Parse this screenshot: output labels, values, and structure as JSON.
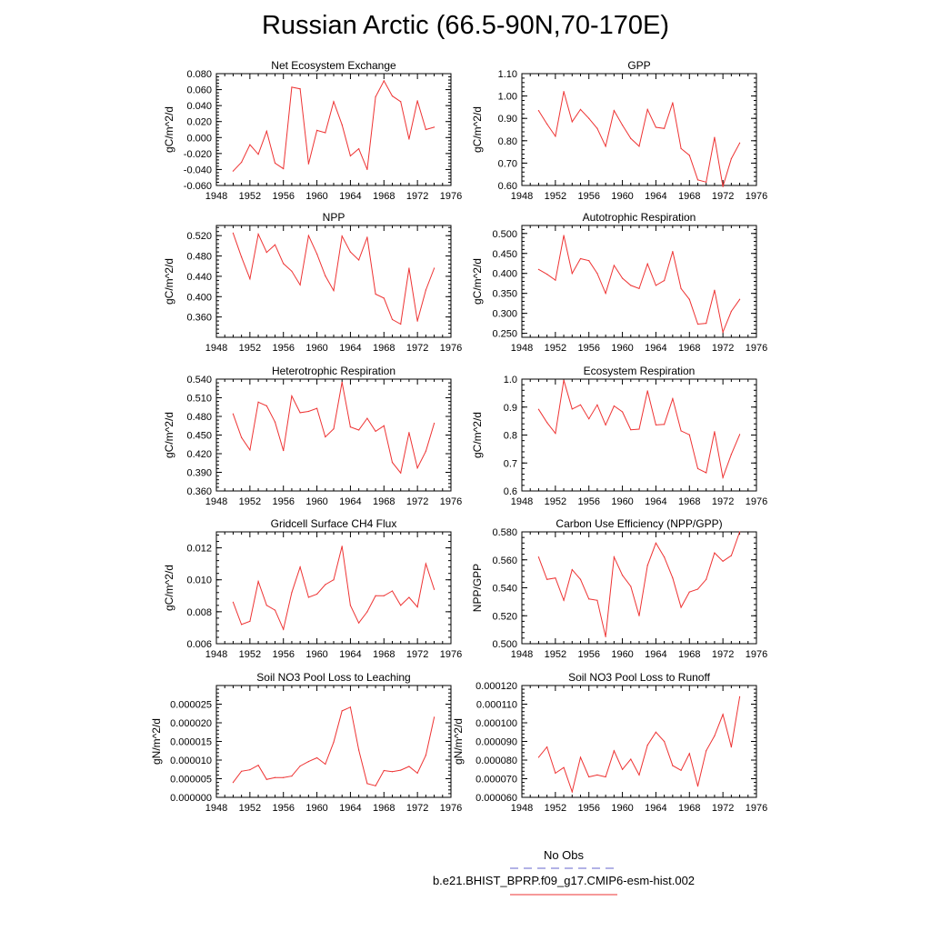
{
  "title": "Russian Arctic (66.5-90N,70-170E)",
  "legend": {
    "items": [
      {
        "label": "No Obs",
        "color": "#6666cc",
        "style": "dashed"
      },
      {
        "label": "b.e21.BHIST_BPRP.f09_g17.CMIP6-esm-hist.002",
        "color": "#ee3333",
        "style": "solid"
      }
    ]
  },
  "chart_data": [
    {
      "type": "line",
      "title": "Net Ecosystem Exchange",
      "xlabel": "",
      "ylabel": "gC/m^2/d",
      "xlim": [
        1948,
        1976
      ],
      "ylim": [
        -0.06,
        0.08
      ],
      "xticks": [
        "1948",
        "1952",
        "1956",
        "1960",
        "1964",
        "1968",
        "1972",
        "1976"
      ],
      "yticks": [
        "-0.060",
        "-0.040",
        "-0.020",
        "0.000",
        "0.020",
        "0.040",
        "0.060",
        "0.080"
      ],
      "series": [
        {
          "color": "#ee3333",
          "x": [
            1950,
            1951,
            1952,
            1953,
            1954,
            1955,
            1956,
            1957,
            1958,
            1959,
            1960,
            1961,
            1962,
            1963,
            1964,
            1965,
            1966,
            1967,
            1968,
            1969,
            1970,
            1971,
            1972,
            1973,
            1974
          ],
          "y": [
            -0.042,
            -0.031,
            -0.009,
            -0.021,
            0.008,
            -0.032,
            -0.039,
            0.063,
            0.061,
            -0.033,
            0.009,
            0.006,
            0.045,
            0.016,
            -0.023,
            -0.014,
            -0.04,
            0.051,
            0.071,
            0.052,
            0.045,
            -0.002,
            0.046,
            0.01,
            0.013
          ]
        }
      ]
    },
    {
      "type": "line",
      "title": "GPP",
      "xlabel": "",
      "ylabel": "gC/m^2/d",
      "xlim": [
        1948,
        1976
      ],
      "ylim": [
        0.6,
        1.1
      ],
      "xticks": [
        "1948",
        "1952",
        "1956",
        "1960",
        "1964",
        "1968",
        "1972",
        "1976"
      ],
      "yticks": [
        "0.60",
        "0.70",
        "0.80",
        "0.90",
        "1.00",
        "1.10"
      ],
      "series": [
        {
          "color": "#ee3333",
          "x": [
            1950,
            1951,
            1952,
            1953,
            1954,
            1955,
            1956,
            1957,
            1958,
            1959,
            1960,
            1961,
            1962,
            1963,
            1964,
            1965,
            1966,
            1967,
            1968,
            1969,
            1970,
            1971,
            1972,
            1973,
            1974
          ],
          "y": [
            0.935,
            0.875,
            0.82,
            1.02,
            0.885,
            0.94,
            0.9,
            0.855,
            0.775,
            0.935,
            0.87,
            0.81,
            0.775,
            0.94,
            0.86,
            0.855,
            0.97,
            0.765,
            0.735,
            0.625,
            0.615,
            0.815,
            0.595,
            0.72,
            0.79
          ]
        }
      ]
    },
    {
      "type": "line",
      "title": "NPP",
      "xlabel": "",
      "ylabel": "gC/m^2/d",
      "xlim": [
        1948,
        1976
      ],
      "ylim": [
        0.32,
        0.54
      ],
      "xticks": [
        "1948",
        "1952",
        "1956",
        "1960",
        "1964",
        "1968",
        "1972",
        "1976"
      ],
      "yticks": [
        "0.360",
        "0.400",
        "0.440",
        "0.480",
        "0.520"
      ],
      "series": [
        {
          "color": "#ee3333",
          "x": [
            1950,
            1951,
            1952,
            1953,
            1954,
            1955,
            1956,
            1957,
            1958,
            1959,
            1960,
            1961,
            1962,
            1963,
            1964,
            1965,
            1966,
            1967,
            1968,
            1969,
            1970,
            1971,
            1972,
            1973,
            1974
          ],
          "y": [
            0.525,
            0.478,
            0.435,
            0.523,
            0.487,
            0.502,
            0.465,
            0.45,
            0.423,
            0.52,
            0.484,
            0.441,
            0.412,
            0.519,
            0.488,
            0.472,
            0.517,
            0.405,
            0.397,
            0.355,
            0.346,
            0.456,
            0.352,
            0.413,
            0.456
          ]
        }
      ]
    },
    {
      "type": "line",
      "title": "Autotrophic Respiration",
      "xlabel": "",
      "ylabel": "gC/m^2/d",
      "xlim": [
        1948,
        1976
      ],
      "ylim": [
        0.24,
        0.52
      ],
      "xticks": [
        "1948",
        "1952",
        "1956",
        "1960",
        "1964",
        "1968",
        "1972",
        "1976"
      ],
      "yticks": [
        "0.250",
        "0.300",
        "0.350",
        "0.400",
        "0.450",
        "0.500"
      ],
      "series": [
        {
          "color": "#ee3333",
          "x": [
            1950,
            1951,
            1952,
            1953,
            1954,
            1955,
            1956,
            1957,
            1958,
            1959,
            1960,
            1961,
            1962,
            1963,
            1964,
            1965,
            1966,
            1967,
            1968,
            1969,
            1970,
            1971,
            1972,
            1973,
            1974
          ],
          "y": [
            0.41,
            0.398,
            0.383,
            0.495,
            0.4,
            0.437,
            0.432,
            0.4,
            0.35,
            0.42,
            0.388,
            0.37,
            0.362,
            0.424,
            0.37,
            0.382,
            0.455,
            0.362,
            0.335,
            0.273,
            0.275,
            0.358,
            0.253,
            0.305,
            0.335
          ]
        }
      ]
    },
    {
      "type": "line",
      "title": "Heterotrophic Respiration",
      "xlabel": "",
      "ylabel": "gC/m^2/d",
      "xlim": [
        1948,
        1976
      ],
      "ylim": [
        0.36,
        0.54
      ],
      "xticks": [
        "1948",
        "1952",
        "1956",
        "1960",
        "1964",
        "1968",
        "1972",
        "1976"
      ],
      "yticks": [
        "0.360",
        "0.390",
        "0.420",
        "0.450",
        "0.480",
        "0.510",
        "0.540"
      ],
      "series": [
        {
          "color": "#ee3333",
          "x": [
            1950,
            1951,
            1952,
            1953,
            1954,
            1955,
            1956,
            1957,
            1958,
            1959,
            1960,
            1961,
            1962,
            1963,
            1964,
            1965,
            1966,
            1967,
            1968,
            1969,
            1970,
            1971,
            1972,
            1973,
            1974
          ],
          "y": [
            0.484,
            0.446,
            0.426,
            0.503,
            0.497,
            0.471,
            0.425,
            0.513,
            0.486,
            0.488,
            0.493,
            0.447,
            0.46,
            0.535,
            0.463,
            0.458,
            0.477,
            0.456,
            0.465,
            0.406,
            0.389,
            0.454,
            0.397,
            0.424,
            0.469
          ]
        }
      ]
    },
    {
      "type": "line",
      "title": "Ecosystem Respiration",
      "xlabel": "",
      "ylabel": "gC/m^2/d",
      "xlim": [
        1948,
        1976
      ],
      "ylim": [
        0.6,
        1.0
      ],
      "xticks": [
        "1948",
        "1952",
        "1956",
        "1960",
        "1964",
        "1968",
        "1972",
        "1976"
      ],
      "yticks": [
        "0.6",
        "0.7",
        "0.8",
        "0.9",
        "1.0"
      ],
      "series": [
        {
          "color": "#ee3333",
          "x": [
            1950,
            1951,
            1952,
            1953,
            1954,
            1955,
            1956,
            1957,
            1958,
            1959,
            1960,
            1961,
            1962,
            1963,
            1964,
            1965,
            1966,
            1967,
            1968,
            1969,
            1970,
            1971,
            1972,
            1973,
            1974
          ],
          "y": [
            0.892,
            0.845,
            0.806,
            0.996,
            0.893,
            0.908,
            0.858,
            0.908,
            0.836,
            0.904,
            0.883,
            0.819,
            0.821,
            0.958,
            0.836,
            0.838,
            0.93,
            0.815,
            0.801,
            0.68,
            0.665,
            0.812,
            0.648,
            0.731,
            0.802
          ]
        }
      ]
    },
    {
      "type": "line",
      "title": "Gridcell Surface CH4 Flux",
      "xlabel": "",
      "ylabel": "gC/m^2/d",
      "xlim": [
        1948,
        1976
      ],
      "ylim": [
        0.006,
        0.013
      ],
      "xticks": [
        "1948",
        "1952",
        "1956",
        "1960",
        "1964",
        "1968",
        "1972",
        "1976"
      ],
      "yticks": [
        "0.006",
        "0.008",
        "0.010",
        "0.012"
      ],
      "series": [
        {
          "color": "#ee3333",
          "x": [
            1950,
            1951,
            1952,
            1953,
            1954,
            1955,
            1956,
            1957,
            1958,
            1959,
            1960,
            1961,
            1962,
            1963,
            1964,
            1965,
            1966,
            1967,
            1968,
            1969,
            1970,
            1971,
            1972,
            1973,
            1974
          ],
          "y": [
            0.0086,
            0.0072,
            0.0074,
            0.0099,
            0.0084,
            0.0081,
            0.0069,
            0.0092,
            0.0108,
            0.0089,
            0.0091,
            0.0097,
            0.01,
            0.0121,
            0.0084,
            0.0073,
            0.008,
            0.009,
            0.009,
            0.0093,
            0.0084,
            0.0089,
            0.0083,
            0.011,
            0.0094
          ]
        }
      ]
    },
    {
      "type": "line",
      "title": "Carbon Use Efficiency (NPP/GPP)",
      "xlabel": "",
      "ylabel": "NPP/GPP",
      "xlim": [
        1948,
        1976
      ],
      "ylim": [
        0.5,
        0.58
      ],
      "xticks": [
        "1948",
        "1952",
        "1956",
        "1960",
        "1964",
        "1968",
        "1972",
        "1976"
      ],
      "yticks": [
        "0.500",
        "0.520",
        "0.540",
        "0.560",
        "0.580"
      ],
      "series": [
        {
          "color": "#ee3333",
          "x": [
            1950,
            1951,
            1952,
            1953,
            1954,
            1955,
            1956,
            1957,
            1958,
            1959,
            1960,
            1961,
            1962,
            1963,
            1964,
            1965,
            1966,
            1967,
            1968,
            1969,
            1970,
            1971,
            1972,
            1973,
            1974
          ],
          "y": [
            0.562,
            0.546,
            0.547,
            0.531,
            0.553,
            0.546,
            0.532,
            0.531,
            0.505,
            0.562,
            0.549,
            0.541,
            0.52,
            0.556,
            0.572,
            0.562,
            0.547,
            0.526,
            0.537,
            0.539,
            0.546,
            0.565,
            0.559,
            0.563,
            0.58
          ]
        }
      ]
    },
    {
      "type": "line",
      "title": "Soil NO3 Pool Loss to Leaching",
      "xlabel": "",
      "ylabel": "gN/m^2/d",
      "xlim": [
        1948,
        1976
      ],
      "ylim": [
        0,
        3e-05
      ],
      "xticks": [
        "1948",
        "1952",
        "1956",
        "1960",
        "1964",
        "1968",
        "1972",
        "1976"
      ],
      "yticks": [
        "0.000000",
        "0.000005",
        "0.000010",
        "0.000015",
        "0.000020",
        "0.000025"
      ],
      "series": [
        {
          "color": "#ee3333",
          "x": [
            1950,
            1951,
            1952,
            1953,
            1954,
            1955,
            1956,
            1957,
            1958,
            1959,
            1960,
            1961,
            1962,
            1963,
            1964,
            1965,
            1966,
            1967,
            1968,
            1969,
            1970,
            1971,
            1972,
            1973,
            1974
          ],
          "y": [
            4e-06,
            7e-06,
            7.4e-06,
            8.6e-06,
            4.8e-06,
            5.3e-06,
            5.3e-06,
            5.7e-06,
            8.4e-06,
            9.6e-06,
            1.06e-05,
            8.9e-06,
            1.48e-05,
            2.32e-05,
            2.42e-05,
            1.27e-05,
            3.7e-06,
            3.1e-06,
            7.2e-06,
            6.9e-06,
            7.3e-06,
            8.3e-06,
            6.5e-06,
            1.13e-05,
            2.15e-05
          ]
        }
      ]
    },
    {
      "type": "line",
      "title": "Soil NO3 Pool Loss to Runoff",
      "xlabel": "",
      "ylabel": "gN/m^2/d",
      "xlim": [
        1948,
        1976
      ],
      "ylim": [
        6e-05,
        0.00012
      ],
      "xticks": [
        "1948",
        "1952",
        "1956",
        "1960",
        "1964",
        "1968",
        "1972",
        "1976"
      ],
      "yticks": [
        "0.000060",
        "0.000070",
        "0.000080",
        "0.000090",
        "0.000100",
        "0.000110",
        "0.000120"
      ],
      "series": [
        {
          "color": "#ee3333",
          "x": [
            1950,
            1951,
            1952,
            1953,
            1954,
            1955,
            1956,
            1957,
            1958,
            1959,
            1960,
            1961,
            1962,
            1963,
            1964,
            1965,
            1966,
            1967,
            1968,
            1969,
            1970,
            1971,
            1972,
            1973,
            1974
          ],
          "y": [
            8.15e-05,
            8.7e-05,
            7.3e-05,
            7.6e-05,
            6.3e-05,
            8.15e-05,
            7.1e-05,
            7.2e-05,
            7.1e-05,
            8.5e-05,
            7.5e-05,
            8.05e-05,
            7.2e-05,
            8.8e-05,
            9.5e-05,
            9e-05,
            7.7e-05,
            7.45e-05,
            8.35e-05,
            6.6e-05,
            8.5e-05,
            9.3e-05,
            0.0001045,
            8.7e-05,
            0.000114
          ]
        }
      ]
    }
  ]
}
